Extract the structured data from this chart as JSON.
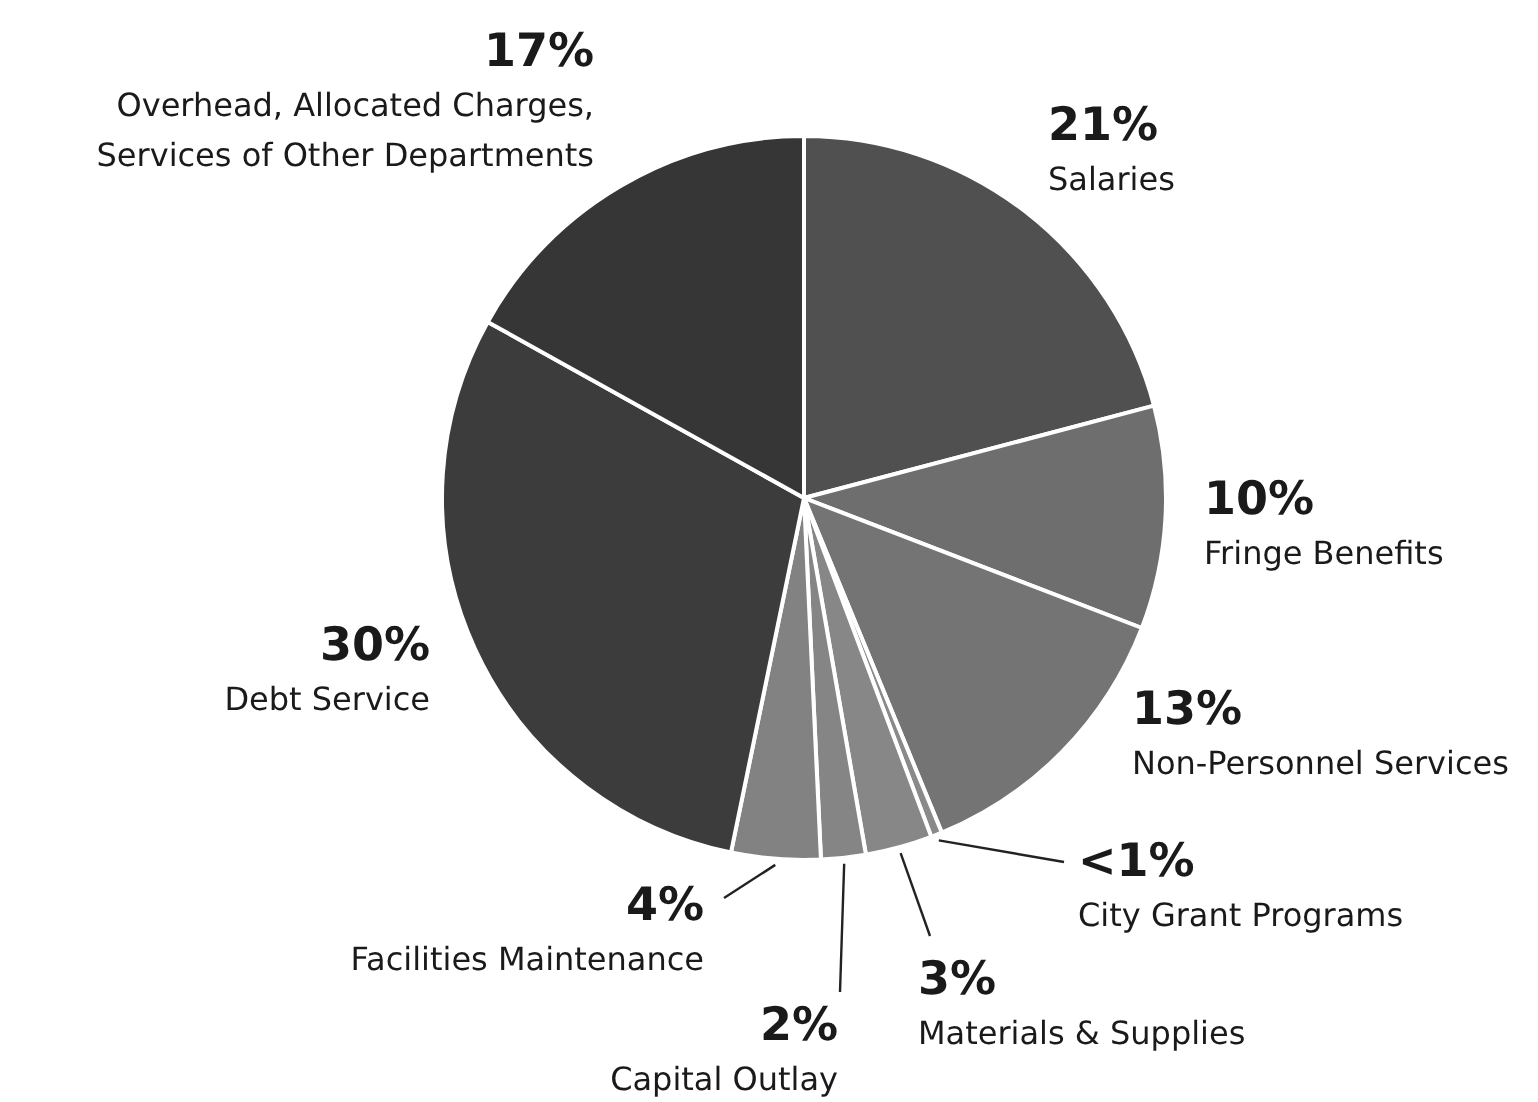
{
  "chart_data": {
    "type": "pie",
    "categories": [
      "Salaries",
      "Fringe Benefits",
      "Non-Personnel Services",
      "City Grant Programs",
      "Materials & Supplies",
      "Capital Outlay",
      "Facilities Maintenance",
      "Debt Service",
      "Overhead, Allocated Charges, Services of Other Departments"
    ],
    "values": [
      21,
      10,
      13,
      0.5,
      3,
      2,
      4,
      30,
      17
    ],
    "value_labels": [
      "21%",
      "10%",
      "13%",
      "<1%",
      "3%",
      "2%",
      "4%",
      "30%",
      "17%"
    ],
    "colors": [
      "#505050",
      "#6e6e6e",
      "#747474",
      "#8a8a8a",
      "#878787",
      "#858585",
      "#828282",
      "#3c3c3c",
      "#363636"
    ]
  }
}
